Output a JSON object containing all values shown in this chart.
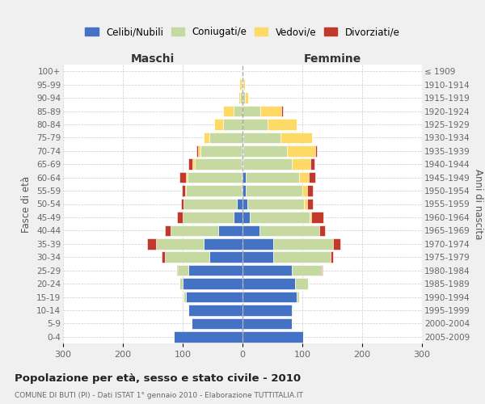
{
  "age_groups_bottom_to_top": [
    "0-4",
    "5-9",
    "10-14",
    "15-19",
    "20-24",
    "25-29",
    "30-34",
    "35-39",
    "40-44",
    "45-49",
    "50-54",
    "55-59",
    "60-64",
    "65-69",
    "70-74",
    "75-79",
    "80-84",
    "85-89",
    "90-94",
    "95-99",
    "100+"
  ],
  "birth_years_bottom_to_top": [
    "2005-2009",
    "2000-2004",
    "1995-1999",
    "1990-1994",
    "1985-1989",
    "1980-1984",
    "1975-1979",
    "1970-1974",
    "1965-1969",
    "1960-1964",
    "1955-1959",
    "1950-1954",
    "1945-1949",
    "1940-1944",
    "1935-1939",
    "1930-1934",
    "1925-1929",
    "1920-1924",
    "1915-1919",
    "1910-1914",
    "≤ 1909"
  ],
  "males": {
    "celibi": [
      115,
      85,
      90,
      95,
      100,
      90,
      55,
      65,
      40,
      15,
      10,
      2,
      2,
      2,
      2,
      0,
      0,
      0,
      0,
      0,
      0
    ],
    "coniugati": [
      0,
      0,
      1,
      3,
      5,
      18,
      75,
      80,
      80,
      85,
      88,
      92,
      90,
      78,
      68,
      55,
      32,
      15,
      4,
      2,
      0
    ],
    "vedovi": [
      0,
      0,
      0,
      0,
      0,
      0,
      0,
      0,
      0,
      0,
      0,
      2,
      3,
      4,
      5,
      10,
      15,
      18,
      3,
      3,
      0
    ],
    "divorziati": [
      0,
      0,
      0,
      0,
      0,
      2,
      5,
      14,
      10,
      10,
      5,
      6,
      10,
      6,
      2,
      0,
      0,
      0,
      0,
      0,
      0
    ]
  },
  "females": {
    "nubili": [
      102,
      82,
      82,
      90,
      88,
      82,
      52,
      52,
      28,
      12,
      8,
      5,
      5,
      2,
      2,
      2,
      0,
      0,
      0,
      0,
      0
    ],
    "coniugate": [
      0,
      0,
      2,
      5,
      22,
      50,
      95,
      100,
      100,
      100,
      95,
      95,
      90,
      80,
      72,
      62,
      42,
      30,
      4,
      2,
      0
    ],
    "vedove": [
      0,
      0,
      0,
      0,
      0,
      0,
      0,
      0,
      0,
      3,
      5,
      8,
      16,
      32,
      48,
      52,
      48,
      35,
      5,
      2,
      0
    ],
    "divorziate": [
      0,
      0,
      0,
      0,
      0,
      2,
      5,
      12,
      10,
      20,
      10,
      10,
      10,
      6,
      2,
      0,
      0,
      3,
      0,
      0,
      0
    ]
  },
  "colors": {
    "celibi": "#4472C4",
    "coniugati": "#C5D9A0",
    "vedovi": "#FFD966",
    "divorziati": "#C0392B"
  },
  "xlim": 300,
  "title": "Popolazione per età, sesso e stato civile - 2010",
  "subtitle": "COMUNE DI BUTI (PI) - Dati ISTAT 1° gennaio 2010 - Elaborazione TUTTITALIA.IT",
  "ylabel_left": "Fasce di età",
  "ylabel_right": "Anni di nascita",
  "xlabel_left": "Maschi",
  "xlabel_right": "Femmine",
  "bg_color": "#f0f0f0",
  "plot_bg_color": "#ffffff"
}
